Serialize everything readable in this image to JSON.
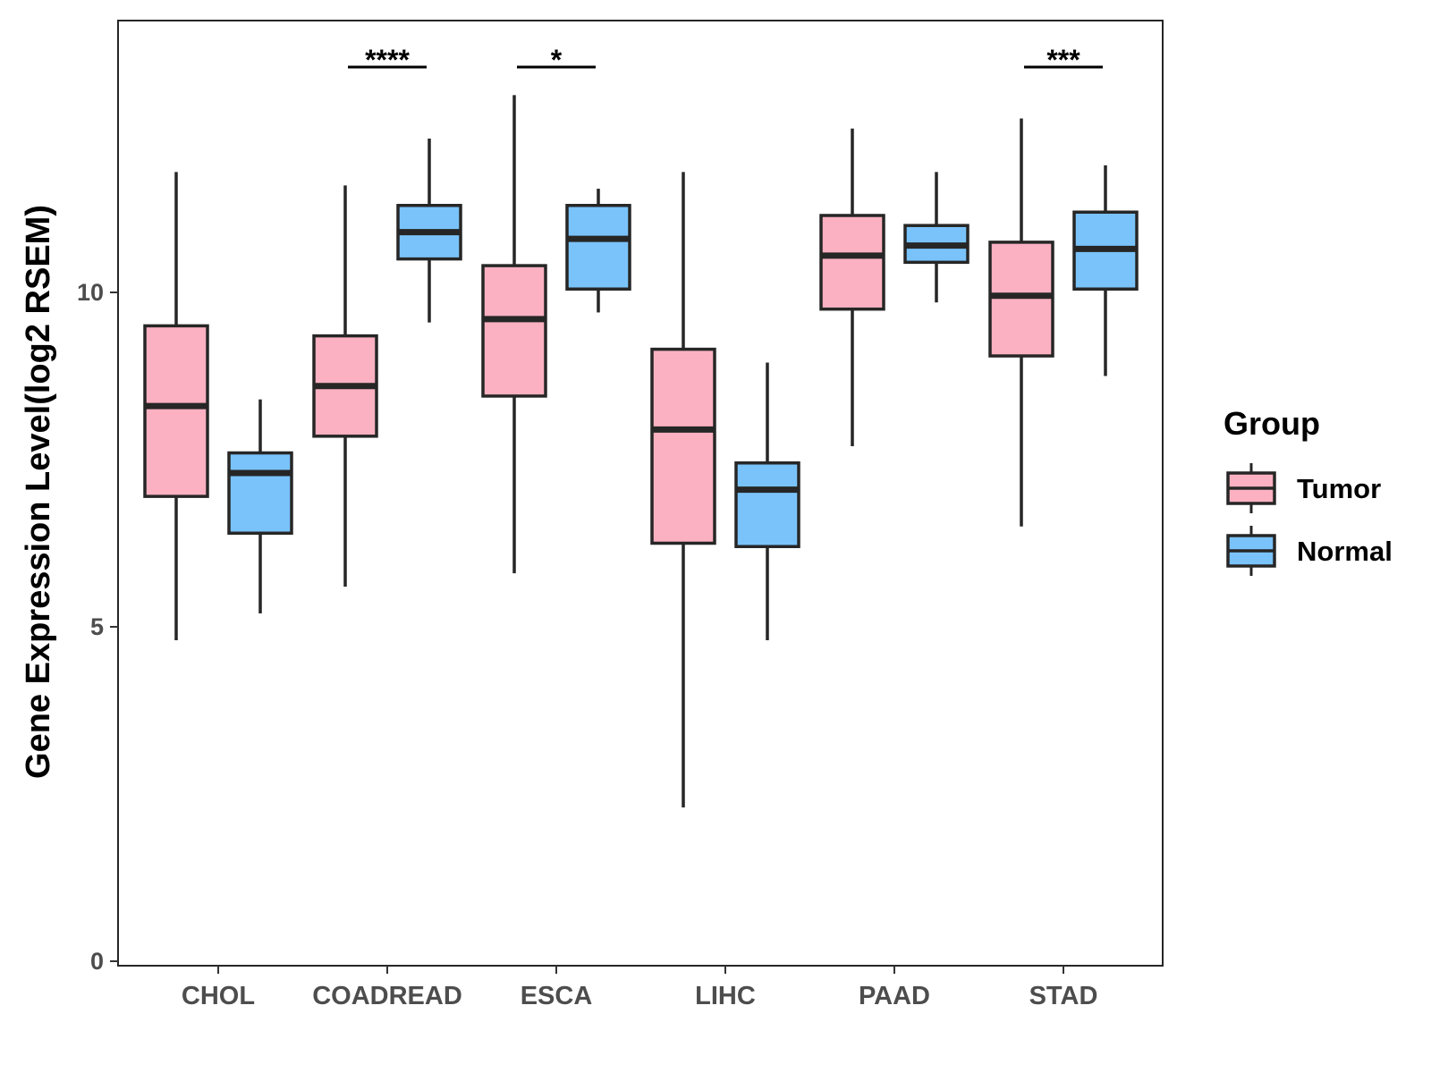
{
  "chart_data": {
    "type": "boxplot",
    "title": "",
    "xlabel": "",
    "ylabel": "Gene Expression Level(log2 RSEM)",
    "ylim": [
      -0.1,
      14.0
    ],
    "yticks": [
      0,
      5,
      10
    ],
    "categories": [
      "CHOL",
      "COADREAD",
      "ESCA",
      "LIHC",
      "PAAD",
      "STAD"
    ],
    "legend": {
      "title": "Group",
      "position": "right",
      "entries": [
        "Tumor",
        "Normal"
      ]
    },
    "colors": {
      "Tumor": "#FBB1C1",
      "Normal": "#7AC3FA",
      "outline": "#262626"
    },
    "series": [
      {
        "name": "Tumor",
        "boxes": [
          {
            "category": "CHOL",
            "min": 4.8,
            "q1": 6.95,
            "median": 8.3,
            "q3": 9.5,
            "max": 11.8
          },
          {
            "category": "COADREAD",
            "min": 5.6,
            "q1": 7.85,
            "median": 8.6,
            "q3": 9.35,
            "max": 11.6
          },
          {
            "category": "ESCA",
            "min": 5.8,
            "q1": 8.45,
            "median": 9.6,
            "q3": 10.4,
            "max": 12.95
          },
          {
            "category": "LIHC",
            "min": 2.3,
            "q1": 6.25,
            "median": 7.95,
            "q3": 9.15,
            "max": 11.8
          },
          {
            "category": "PAAD",
            "min": 7.7,
            "q1": 9.75,
            "median": 10.55,
            "q3": 11.15,
            "max": 12.45
          },
          {
            "category": "STAD",
            "min": 6.5,
            "q1": 9.05,
            "median": 9.95,
            "q3": 10.75,
            "max": 12.6
          }
        ]
      },
      {
        "name": "Normal",
        "boxes": [
          {
            "category": "CHOL",
            "min": 5.2,
            "q1": 6.4,
            "median": 7.3,
            "q3": 7.6,
            "max": 8.4
          },
          {
            "category": "COADREAD",
            "min": 9.55,
            "q1": 10.5,
            "median": 10.9,
            "q3": 11.3,
            "max": 12.3
          },
          {
            "category": "ESCA",
            "min": 9.7,
            "q1": 10.05,
            "median": 10.8,
            "q3": 11.3,
            "max": 11.55
          },
          {
            "category": "LIHC",
            "min": 4.8,
            "q1": 6.2,
            "median": 7.05,
            "q3": 7.45,
            "max": 8.95
          },
          {
            "category": "PAAD",
            "min": 9.85,
            "q1": 10.45,
            "median": 10.7,
            "q3": 11.0,
            "max": 11.8
          },
          {
            "category": "STAD",
            "min": 8.75,
            "q1": 10.05,
            "median": 10.65,
            "q3": 11.2,
            "max": 11.9
          }
        ]
      }
    ],
    "annotations": [
      {
        "category": "COADREAD",
        "label": "****"
      },
      {
        "category": "ESCA",
        "label": "*"
      },
      {
        "category": "STAD",
        "label": "***"
      }
    ]
  }
}
